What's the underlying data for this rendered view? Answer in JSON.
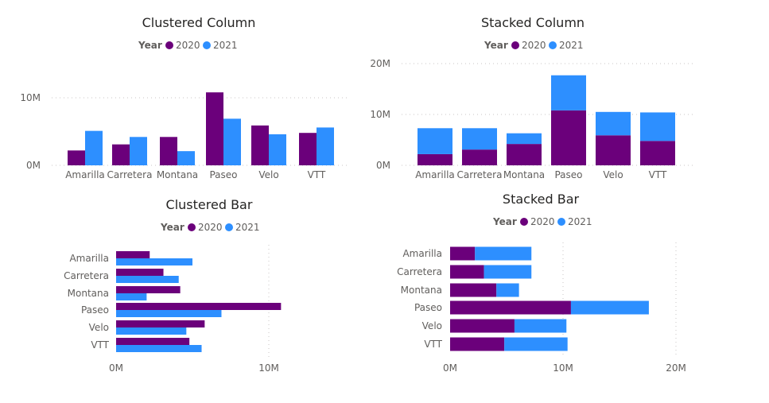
{
  "colors": {
    "2020": "#6B007B",
    "2021": "#2D8FFF"
  },
  "chart_data": [
    {
      "type": "bar",
      "orientation": "vertical",
      "mode": "clustered",
      "title": "Clustered Column",
      "legend": {
        "title": "Year",
        "position": "top",
        "entries": [
          "2020",
          "2021"
        ]
      },
      "categories": [
        "Amarilla",
        "Carretera",
        "Montana",
        "Paseo",
        "Velo",
        "VTT"
      ],
      "series": [
        {
          "name": "2020",
          "values": [
            2.2,
            3.1,
            4.2,
            10.8,
            5.9,
            4.8
          ]
        },
        {
          "name": "2021",
          "values": [
            5.1,
            4.2,
            2.1,
            6.9,
            4.6,
            5.6
          ]
        }
      ],
      "ylim": [
        0,
        12
      ],
      "ticks": [
        {
          "v": 0,
          "label": "0M"
        },
        {
          "v": 10,
          "label": "10M"
        }
      ],
      "grid": true
    },
    {
      "type": "bar",
      "orientation": "vertical",
      "mode": "stacked",
      "title": "Stacked Column",
      "legend": {
        "title": "Year",
        "position": "top",
        "entries": [
          "2020",
          "2021"
        ]
      },
      "categories": [
        "Amarilla",
        "Carretera",
        "Montana",
        "Paseo",
        "Velo",
        "VTT"
      ],
      "series": [
        {
          "name": "2020",
          "values": [
            2.2,
            3.1,
            4.2,
            10.8,
            5.9,
            4.8
          ]
        },
        {
          "name": "2021",
          "values": [
            5.1,
            4.2,
            2.1,
            6.9,
            4.6,
            5.6
          ]
        }
      ],
      "ylim": [
        0,
        20
      ],
      "ticks": [
        {
          "v": 0,
          "label": "0M"
        },
        {
          "v": 10,
          "label": "10M"
        },
        {
          "v": 20,
          "label": "20M"
        }
      ],
      "grid": true
    },
    {
      "type": "bar",
      "orientation": "horizontal",
      "mode": "clustered",
      "title": "Clustered Bar",
      "legend": {
        "title": "Year",
        "position": "top",
        "entries": [
          "2020",
          "2021"
        ]
      },
      "categories": [
        "Amarilla",
        "Carretera",
        "Montana",
        "Paseo",
        "Velo",
        "VTT"
      ],
      "series": [
        {
          "name": "2020",
          "values": [
            2.2,
            3.1,
            4.2,
            10.8,
            5.8,
            4.8
          ]
        },
        {
          "name": "2021",
          "values": [
            5.0,
            4.1,
            2.0,
            6.9,
            4.6,
            5.6
          ]
        }
      ],
      "xlim": [
        0,
        14
      ],
      "ticks": [
        {
          "v": 0,
          "label": "0M"
        },
        {
          "v": 10,
          "label": "10M"
        }
      ],
      "grid": true
    },
    {
      "type": "bar",
      "orientation": "horizontal",
      "mode": "stacked",
      "title": "Stacked Bar",
      "legend": {
        "title": "Year",
        "position": "top",
        "entries": [
          "2020",
          "2021"
        ]
      },
      "categories": [
        "Amarilla",
        "Carretera",
        "Montana",
        "Paseo",
        "Velo",
        "VTT"
      ],
      "series": [
        {
          "name": "2020",
          "values": [
            2.2,
            3.0,
            4.1,
            10.7,
            5.7,
            4.8
          ]
        },
        {
          "name": "2021",
          "values": [
            5.0,
            4.2,
            2.0,
            6.9,
            4.6,
            5.6
          ]
        }
      ],
      "xlim": [
        0,
        20
      ],
      "ticks": [
        {
          "v": 0,
          "label": "0M"
        },
        {
          "v": 10,
          "label": "10M"
        },
        {
          "v": 20,
          "label": "20M"
        }
      ],
      "grid": true
    }
  ]
}
